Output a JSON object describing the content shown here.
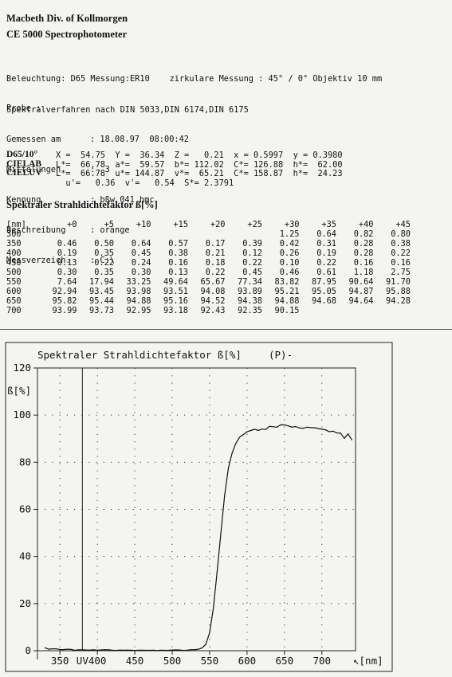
{
  "header": {
    "line1": "Macbeth  Div. of Kollmorgen",
    "line2": "CE 5000    Spectrophotometer"
  },
  "illumination": {
    "line1": "Beleuchtung: D65 Messung:ER10    zirkulare Messung : 45° / 0° Objektiv 10 mm",
    "line2": "Spektralverfahren nach DIN 5033,DIN 6174,DIN 6175"
  },
  "probe": {
    "title": "Probe :",
    "fields": [
      {
        "key": "Gemessen am",
        "value": ": 18.08.97  08:00:42"
      },
      {
        "key": "Mittelungen",
        "value": ":  3"
      },
      {
        "key": "Kennung",
        "value": ": bßw 041 hmc"
      },
      {
        "key": "Beschreibung",
        "value": ": orange"
      },
      {
        "key": "Messverzeich.",
        "value": ": C:\\"
      }
    ]
  },
  "colorimetry": {
    "d65": {
      "label": "D65/10°",
      "values": "X =  54.75  Y =  36.34  Z =   0.21  x = 0.5997  y = 0.3980"
    },
    "cielab": {
      "label": "CIELAB",
      "values": "L*=  66.78  a*=  59.57  b*= 112.02  C*= 126.88  h*=  62.00"
    },
    "cieluv": {
      "label": "CIELUV",
      "values": "L*=  66.78  u*= 144.87  v*=  65.21  C*= 158.87  h*=  24.23"
    },
    "extra": "  u'=   0.36  v'=   0.54  S*= 2.3791"
  },
  "spectral_title": "Spektraler Strahldichtefaktor ß[%]",
  "table": {
    "header": [
      "[nm]",
      "+0",
      "+5",
      "+10",
      "+15",
      "+20",
      "+25",
      "+30",
      "+35",
      "+40",
      "+45"
    ],
    "rows": [
      [
        "300",
        "",
        "",
        "",
        "",
        "",
        "",
        "1.25",
        "0.64",
        "0.82",
        "0.80"
      ],
      [
        "350",
        "0.46",
        "0.50",
        "0.64",
        "0.57",
        "0.17",
        "0.39",
        "0.42",
        "0.31",
        "0.28",
        "0.38"
      ],
      [
        "400",
        "0.19",
        "0.35",
        "0.45",
        "0.38",
        "0.21",
        "0.12",
        "0.26",
        "0.19",
        "0.28",
        "0.22"
      ],
      [
        "450",
        "0.13",
        "0.22",
        "0.24",
        "0.16",
        "0.18",
        "0.22",
        "0.10",
        "0.22",
        "0.16",
        "0.16"
      ],
      [
        "500",
        "0.30",
        "0.35",
        "0.30",
        "0.13",
        "0.22",
        "0.45",
        "0.46",
        "0.61",
        "1.18",
        "2.75"
      ],
      [
        "550",
        "7.64",
        "17.94",
        "33.25",
        "49.64",
        "65.67",
        "77.34",
        "83.82",
        "87.95",
        "90.64",
        "91.70"
      ],
      [
        "600",
        "92.94",
        "93.45",
        "93.98",
        "93.51",
        "94.08",
        "93.89",
        "95.21",
        "95.05",
        "94.87",
        "95.88"
      ],
      [
        "650",
        "95.82",
        "95.44",
        "94.88",
        "95.16",
        "94.52",
        "94.38",
        "94.88",
        "94.68",
        "94.64",
        "94.28"
      ],
      [
        "700",
        "93.99",
        "93.73",
        "92.95",
        "93.18",
        "92.43",
        "92.35",
        "90.15",
        "",
        "",
        ""
      ]
    ]
  },
  "chart_data": {
    "type": "line",
    "title": "Spektraler Strahldichtefaktor ß[%]",
    "title_suffix": "(P)-",
    "ylabel": "ß[%]",
    "xlabel": "[nm]",
    "uv_label": "UV",
    "xlim": [
      320,
      745
    ],
    "ylim": [
      0,
      120
    ],
    "x_ticks": [
      350,
      400,
      450,
      500,
      550,
      600,
      650,
      700
    ],
    "y_ticks": [
      0,
      20,
      40,
      60,
      80,
      100,
      120
    ],
    "grid": true,
    "uv_line_x": 380,
    "series": [
      {
        "x": [
          330,
          335,
          340,
          345,
          350,
          355,
          360,
          365,
          370,
          375,
          380,
          385,
          390,
          395,
          400,
          405,
          410,
          415,
          420,
          425,
          430,
          435,
          440,
          445,
          450,
          455,
          460,
          465,
          470,
          475,
          480,
          485,
          490,
          495,
          500,
          505,
          510,
          515,
          520,
          525,
          530,
          535,
          540,
          545,
          550,
          555,
          560,
          565,
          570,
          575,
          580,
          585,
          590,
          595,
          600,
          605,
          610,
          615,
          620,
          625,
          630,
          635,
          640,
          645,
          650,
          655,
          660,
          665,
          670,
          675,
          680,
          685,
          690,
          695,
          700,
          705,
          710,
          715,
          720,
          725,
          730,
          735,
          740
        ],
        "y": [
          1.25,
          0.64,
          0.82,
          0.8,
          0.46,
          0.5,
          0.64,
          0.57,
          0.17,
          0.39,
          0.42,
          0.31,
          0.28,
          0.38,
          0.19,
          0.35,
          0.45,
          0.38,
          0.21,
          0.12,
          0.26,
          0.19,
          0.28,
          0.22,
          0.13,
          0.22,
          0.24,
          0.16,
          0.18,
          0.22,
          0.1,
          0.22,
          0.16,
          0.16,
          0.3,
          0.35,
          0.3,
          0.13,
          0.22,
          0.45,
          0.46,
          0.61,
          1.18,
          2.75,
          7.64,
          17.94,
          33.25,
          49.64,
          65.67,
          77.34,
          83.82,
          87.95,
          90.64,
          91.7,
          92.94,
          93.45,
          93.98,
          93.51,
          94.08,
          93.89,
          95.21,
          95.05,
          94.87,
          95.88,
          95.82,
          95.44,
          94.88,
          95.16,
          94.52,
          94.38,
          94.88,
          94.68,
          94.64,
          94.28,
          93.99,
          93.73,
          92.95,
          93.18,
          92.43,
          92.35,
          90.15,
          92.0,
          89.5
        ]
      }
    ]
  }
}
